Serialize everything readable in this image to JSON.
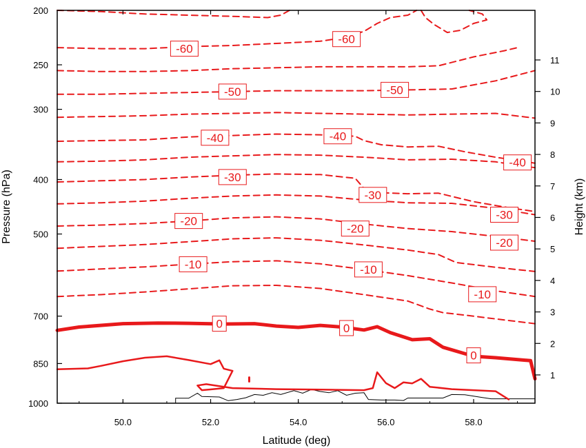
{
  "chart_data": {
    "type": "contour",
    "title": "",
    "xlabel": "Latitude (deg)",
    "ylabel_left": "Pressure (hPa)",
    "ylabel_right": "Height (km)",
    "xlim": [
      48.5,
      59.4
    ],
    "ylim_pressure": [
      1000,
      200
    ],
    "x_ticks": [
      {
        "value": 50.0,
        "label": "50.0"
      },
      {
        "value": 52.0,
        "label": "52.0"
      },
      {
        "value": 54.0,
        "label": "54.0"
      },
      {
        "value": 56.0,
        "label": "56.0"
      },
      {
        "value": 58.0,
        "label": "58.0"
      }
    ],
    "y_left_ticks": [
      {
        "value": 1000,
        "label": "1000"
      },
      {
        "value": 850,
        "label": "850"
      },
      {
        "value": 700,
        "label": "700"
      },
      {
        "value": 500,
        "label": "500"
      },
      {
        "value": 400,
        "label": "400"
      },
      {
        "value": 300,
        "label": "300"
      },
      {
        "value": 250,
        "label": "250"
      },
      {
        "value": 200,
        "label": "200"
      }
    ],
    "y_right_ticks": [
      {
        "value": 1,
        "label": "1"
      },
      {
        "value": 2,
        "label": "2"
      },
      {
        "value": 3,
        "label": "3"
      },
      {
        "value": 4,
        "label": "4"
      },
      {
        "value": 5,
        "label": "5"
      },
      {
        "value": 6,
        "label": "6"
      },
      {
        "value": 7,
        "label": "7"
      },
      {
        "value": 8,
        "label": "8"
      },
      {
        "value": 9,
        "label": "9"
      },
      {
        "value": 10,
        "label": "10"
      },
      {
        "value": 11,
        "label": "11"
      }
    ],
    "contour_color": "#e8191b",
    "terrain_color": "#000000",
    "contours": [
      {
        "level": -60,
        "style": "dashed",
        "points": [
          [
            48.5,
            233
          ],
          [
            49.5,
            234
          ],
          [
            50.5,
            234
          ],
          [
            51.5,
            232
          ],
          [
            52.5,
            231
          ],
          [
            53.5,
            229
          ],
          [
            54.5,
            227
          ],
          [
            55.0,
            224
          ],
          [
            55.5,
            218
          ],
          [
            55.8,
            211
          ],
          [
            56.1,
            206
          ],
          [
            56.5,
            204
          ],
          [
            56.7,
            200
          ]
        ]
      },
      {
        "level": -60,
        "style": "dashed",
        "points": [
          [
            56.8,
            200
          ],
          [
            56.9,
            206
          ],
          [
            57.1,
            212
          ],
          [
            57.4,
            219
          ],
          [
            57.7,
            217
          ],
          [
            58.0,
            211
          ],
          [
            58.3,
            208
          ],
          [
            58.2,
            203
          ],
          [
            57.9,
            200
          ]
        ]
      },
      {
        "level": -55,
        "style": "dashed",
        "points": [
          [
            48.5,
            256
          ],
          [
            49.5,
            257
          ],
          [
            50.5,
            257
          ],
          [
            51.5,
            256
          ],
          [
            52.5,
            254
          ],
          [
            53.5,
            253
          ],
          [
            54.5,
            252
          ],
          [
            55.5,
            252
          ],
          [
            56.5,
            252
          ],
          [
            57.2,
            251
          ],
          [
            58.0,
            242
          ],
          [
            58.7,
            236
          ],
          [
            59.0,
            233
          ]
        ]
      },
      {
        "level": -55,
        "style": "dashed",
        "points": [
          [
            48.5,
            200
          ],
          [
            49.5,
            201
          ],
          [
            50.5,
            203
          ],
          [
            51.5,
            204
          ],
          [
            52.5,
            205
          ],
          [
            53.3,
            206
          ],
          [
            53.6,
            204
          ],
          [
            53.8,
            200
          ]
        ]
      },
      {
        "level": -50,
        "style": "dashed",
        "points": [
          [
            48.5,
            282
          ],
          [
            49.5,
            282
          ],
          [
            50.5,
            281
          ],
          [
            51.5,
            280
          ],
          [
            52.5,
            279
          ],
          [
            53.5,
            278
          ],
          [
            54.5,
            278
          ],
          [
            55.5,
            278
          ],
          [
            56.5,
            277
          ],
          [
            57.5,
            276
          ],
          [
            58.5,
            267
          ],
          [
            59.4,
            256
          ]
        ]
      },
      {
        "level": -45,
        "style": "dashed",
        "points": [
          [
            48.5,
            310
          ],
          [
            49.5,
            309
          ],
          [
            50.5,
            308
          ],
          [
            51.5,
            306
          ],
          [
            52.5,
            305
          ],
          [
            53.5,
            304
          ],
          [
            54.5,
            305
          ],
          [
            55.5,
            306
          ],
          [
            56.5,
            307
          ],
          [
            57.5,
            306
          ],
          [
            58.5,
            305
          ],
          [
            59.4,
            311
          ]
        ]
      },
      {
        "level": -40,
        "style": "dashed",
        "points": [
          [
            48.5,
            342
          ],
          [
            49.5,
            341
          ],
          [
            50.5,
            340
          ],
          [
            51.5,
            336
          ],
          [
            52.5,
            334
          ],
          [
            53.5,
            332
          ],
          [
            54.5,
            333
          ],
          [
            55.3,
            335
          ],
          [
            55.5,
            341
          ],
          [
            55.9,
            347
          ],
          [
            56.5,
            350
          ],
          [
            57.2,
            349
          ],
          [
            57.8,
            357
          ],
          [
            58.5,
            365
          ],
          [
            59.4,
            374
          ]
        ]
      },
      {
        "level": -35,
        "style": "dashed",
        "points": [
          [
            48.5,
            372
          ],
          [
            49.5,
            371
          ],
          [
            50.5,
            369
          ],
          [
            51.5,
            365
          ],
          [
            52.5,
            363
          ],
          [
            53.5,
            361
          ],
          [
            54.5,
            362
          ],
          [
            55.5,
            365
          ],
          [
            56.5,
            369
          ],
          [
            57.5,
            368
          ],
          [
            58.5,
            372
          ],
          [
            59.4,
            381
          ]
        ]
      },
      {
        "level": -30,
        "style": "dashed",
        "points": [
          [
            48.5,
            404
          ],
          [
            49.5,
            402
          ],
          [
            50.5,
            400
          ],
          [
            51.5,
            396
          ],
          [
            52.5,
            393
          ],
          [
            53.5,
            391
          ],
          [
            54.5,
            392
          ],
          [
            55.3,
            398
          ],
          [
            55.5,
            415
          ],
          [
            55.8,
            422
          ],
          [
            56.5,
            424
          ],
          [
            57.2,
            423
          ],
          [
            58.0,
            438
          ],
          [
            58.8,
            449
          ],
          [
            59.4,
            456
          ]
        ]
      },
      {
        "level": -25,
        "style": "dashed",
        "points": [
          [
            48.5,
            442
          ],
          [
            49.5,
            440
          ],
          [
            50.5,
            437
          ],
          [
            51.5,
            432
          ],
          [
            52.5,
            428
          ],
          [
            53.5,
            426
          ],
          [
            54.5,
            428
          ],
          [
            55.5,
            435
          ],
          [
            56.5,
            440
          ],
          [
            57.5,
            441
          ],
          [
            58.5,
            450
          ],
          [
            59.4,
            462
          ]
        ]
      },
      {
        "level": -20,
        "style": "dashed",
        "points": [
          [
            48.5,
            484
          ],
          [
            49.5,
            482
          ],
          [
            50.5,
            479
          ],
          [
            51.5,
            474
          ],
          [
            52.5,
            468
          ],
          [
            53.5,
            466
          ],
          [
            54.5,
            470
          ],
          [
            55.5,
            480
          ],
          [
            56.5,
            489
          ],
          [
            57.5,
            495
          ],
          [
            58.5,
            505
          ],
          [
            59.4,
            515
          ]
        ]
      },
      {
        "level": -15,
        "style": "dashed",
        "points": [
          [
            48.5,
            530
          ],
          [
            49.5,
            526
          ],
          [
            50.5,
            522
          ],
          [
            51.5,
            516
          ],
          [
            52.5,
            510
          ],
          [
            53.5,
            508
          ],
          [
            54.5,
            513
          ],
          [
            55.5,
            523
          ],
          [
            56.5,
            534
          ],
          [
            57.2,
            544
          ],
          [
            57.6,
            562
          ],
          [
            58.5,
            573
          ],
          [
            59.4,
            583
          ]
        ]
      },
      {
        "level": -10,
        "style": "dashed",
        "points": [
          [
            48.5,
            582
          ],
          [
            49.5,
            577
          ],
          [
            50.5,
            572
          ],
          [
            51.5,
            566
          ],
          [
            52.5,
            560
          ],
          [
            53.5,
            558
          ],
          [
            54.5,
            565
          ],
          [
            55.5,
            578
          ],
          [
            56.5,
            593
          ],
          [
            57.5,
            611
          ],
          [
            58.5,
            631
          ],
          [
            59.4,
            646
          ]
        ]
      },
      {
        "level": -5,
        "style": "dashed",
        "points": [
          [
            48.5,
            646
          ],
          [
            49.5,
            641
          ],
          [
            50.5,
            634
          ],
          [
            51.5,
            626
          ],
          [
            52.5,
            618
          ],
          [
            53.5,
            617
          ],
          [
            54.5,
            625
          ],
          [
            55.5,
            641
          ],
          [
            56.5,
            658
          ],
          [
            57.0,
            680
          ],
          [
            57.3,
            690
          ],
          [
            58.0,
            700
          ],
          [
            58.5,
            708
          ],
          [
            59.4,
            722
          ]
        ]
      },
      {
        "level": 0,
        "style": "thick",
        "points": [
          [
            48.5,
            742
          ],
          [
            49.0,
            732
          ],
          [
            50.0,
            722
          ],
          [
            50.8,
            720
          ],
          [
            51.5,
            721
          ],
          [
            52.3,
            723
          ],
          [
            53.0,
            722
          ],
          [
            53.5,
            729
          ],
          [
            54.0,
            733
          ],
          [
            54.5,
            727
          ],
          [
            55.0,
            732
          ],
          [
            55.5,
            741
          ],
          [
            55.8,
            731
          ],
          [
            56.1,
            749
          ],
          [
            56.6,
            771
          ],
          [
            57.0,
            768
          ],
          [
            57.3,
            795
          ],
          [
            58.0,
            825
          ],
          [
            58.5,
            830
          ],
          [
            59.3,
            840
          ],
          [
            59.4,
            905
          ]
        ]
      },
      {
        "level": 5,
        "style": "solid",
        "points": [
          [
            48.5,
            870
          ],
          [
            49.2,
            867
          ],
          [
            49.5,
            858
          ],
          [
            50.0,
            842
          ],
          [
            50.5,
            830
          ],
          [
            51.0,
            825
          ],
          [
            51.5,
            838
          ],
          [
            52.0,
            852
          ],
          [
            52.2,
            839
          ],
          [
            52.3,
            868
          ],
          [
            52.5,
            876
          ],
          [
            52.3,
            940
          ],
          [
            52.0,
            945
          ],
          [
            51.8,
            948
          ],
          [
            51.7,
            930
          ],
          [
            51.9,
            925
          ],
          [
            52.5,
            940
          ],
          [
            53.5,
            944
          ],
          [
            54.5,
            946
          ],
          [
            55.5,
            948
          ],
          [
            55.7,
            940
          ],
          [
            55.8,
            881
          ],
          [
            56.0,
            921
          ],
          [
            56.2,
            940
          ],
          [
            56.4,
            918
          ],
          [
            56.6,
            922
          ],
          [
            56.8,
            905
          ],
          [
            57.0,
            935
          ],
          [
            57.5,
            944
          ],
          [
            58.5,
            952
          ],
          [
            58.8,
            985
          ]
        ]
      }
    ],
    "contour_labels": [
      {
        "text": "-60",
        "x": 51.4,
        "p": 234
      },
      {
        "text": "-60",
        "x": 55.1,
        "p": 225
      },
      {
        "text": "-50",
        "x": 52.5,
        "p": 279
      },
      {
        "text": "-50",
        "x": 56.2,
        "p": 277
      },
      {
        "text": "-40",
        "x": 52.1,
        "p": 337
      },
      {
        "text": "-40",
        "x": 54.9,
        "p": 335
      },
      {
        "text": "-40",
        "x": 59.0,
        "p": 373
      },
      {
        "text": "-30",
        "x": 52.5,
        "p": 396
      },
      {
        "text": "-30",
        "x": 55.7,
        "p": 426
      },
      {
        "text": "-30",
        "x": 58.7,
        "p": 462
      },
      {
        "text": "-20",
        "x": 51.5,
        "p": 474
      },
      {
        "text": "-20",
        "x": 55.3,
        "p": 489
      },
      {
        "text": "-20",
        "x": 58.7,
        "p": 518
      },
      {
        "text": "-10",
        "x": 51.6,
        "p": 566
      },
      {
        "text": "-10",
        "x": 55.6,
        "p": 578
      },
      {
        "text": "-10",
        "x": 58.2,
        "p": 640
      },
      {
        "text": "0",
        "x": 52.2,
        "p": 722
      },
      {
        "text": "0",
        "x": 55.1,
        "p": 735
      },
      {
        "text": "0",
        "x": 58.0,
        "p": 822
      }
    ],
    "terrain": [
      [
        51.2,
        1000
      ],
      [
        51.2,
        980
      ],
      [
        51.5,
        980
      ],
      [
        51.7,
        960
      ],
      [
        51.8,
        973
      ],
      [
        52.2,
        975
      ],
      [
        52.4,
        990
      ],
      [
        52.6,
        985
      ],
      [
        52.8,
        978
      ],
      [
        53.0,
        965
      ],
      [
        53.2,
        968
      ],
      [
        53.4,
        958
      ],
      [
        53.6,
        965
      ],
      [
        53.9,
        950
      ],
      [
        54.1,
        960
      ],
      [
        54.3,
        945
      ],
      [
        54.5,
        953
      ],
      [
        54.7,
        958
      ],
      [
        54.9,
        950
      ],
      [
        55.1,
        968
      ],
      [
        55.3,
        960
      ],
      [
        55.5,
        958
      ],
      [
        55.6,
        985
      ],
      [
        55.9,
        987
      ],
      [
        56.2,
        987
      ],
      [
        56.4,
        989
      ],
      [
        56.5,
        979
      ],
      [
        57.0,
        979
      ],
      [
        57.3,
        979
      ],
      [
        57.5,
        965
      ],
      [
        57.8,
        966
      ],
      [
        58.2,
        977
      ],
      [
        58.4,
        982
      ],
      [
        59.4,
        982
      ],
      [
        59.4,
        1000
      ]
    ],
    "extra_marks": [
      [
        52.88,
        900
      ],
      [
        52.88,
        915
      ]
    ]
  }
}
